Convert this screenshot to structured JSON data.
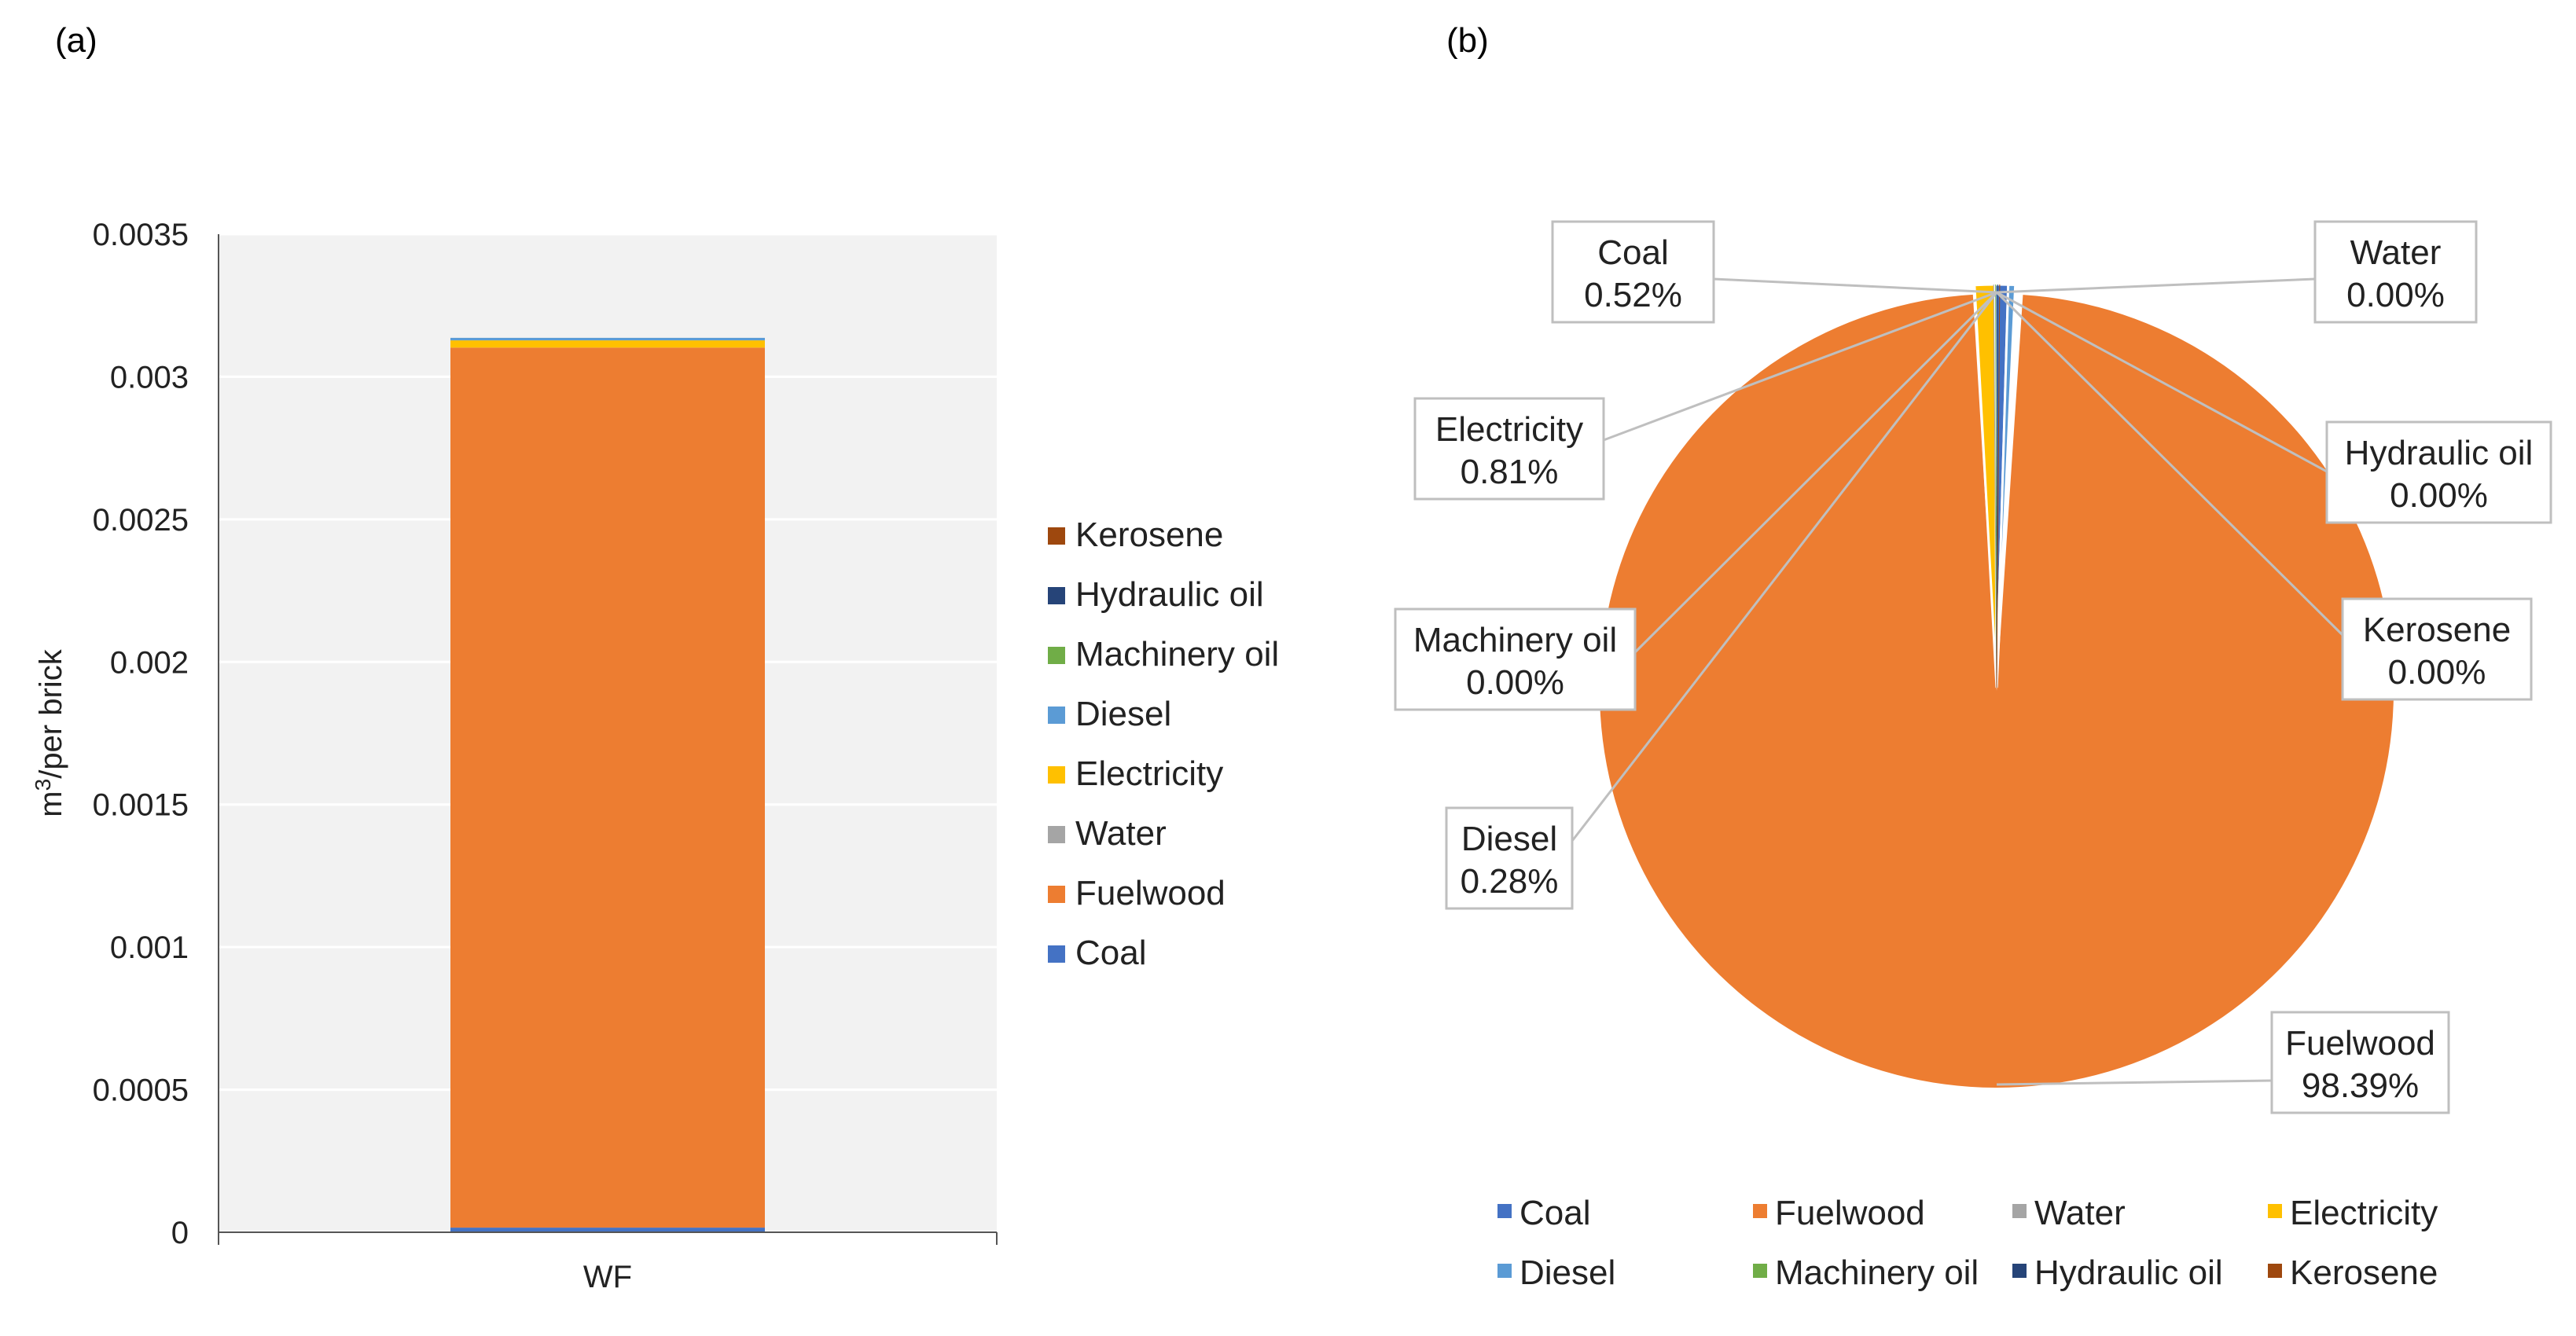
{
  "panels": {
    "a": "(a)",
    "b": "(b)"
  },
  "colors": {
    "Coal": "#4472C4",
    "Fuelwood": "#ED7D31",
    "Water": "#A5A5A5",
    "Electricity": "#FFC000",
    "Diesel": "#5B9BD5",
    "Machinery oil": "#70AD47",
    "Hydraulic oil": "#264478",
    "Kerosene": "#9E480E"
  },
  "chart_data": [
    {
      "type": "bar",
      "stacked": true,
      "panel": "(a)",
      "categories": [
        "WF"
      ],
      "ylabel": "m³/per brick",
      "ylabel_base": "m",
      "ylabel_sup": "3",
      "ylabel_rest": "/per brick",
      "ylim": [
        0,
        0.0035
      ],
      "yticks": [
        "0",
        "0.0005",
        "0.001",
        "0.0015",
        "0.002",
        "0.0025",
        "0.003",
        "0.0035"
      ],
      "series": [
        {
          "name": "Coal",
          "values": [
            1.63e-05
          ]
        },
        {
          "name": "Fuelwood",
          "values": [
            0.003086
          ]
        },
        {
          "name": "Water",
          "values": [
            0.0
          ]
        },
        {
          "name": "Electricity",
          "values": [
            2.54e-05
          ]
        },
        {
          "name": "Diesel",
          "values": [
            8.8e-06
          ]
        },
        {
          "name": "Machinery oil",
          "values": [
            0.0
          ]
        },
        {
          "name": "Hydraulic oil",
          "values": [
            0.0
          ]
        },
        {
          "name": "Kerosene",
          "values": [
            0.0
          ]
        }
      ],
      "legend_order": [
        "Kerosene",
        "Hydraulic oil",
        "Machinery oil",
        "Diesel",
        "Electricity",
        "Water",
        "Fuelwood",
        "Coal"
      ],
      "legend_position": "right"
    },
    {
      "type": "pie",
      "panel": "(b)",
      "slices": [
        {
          "name": "Coal",
          "value": 0.52,
          "label": "0.52%"
        },
        {
          "name": "Fuelwood",
          "value": 98.39,
          "label": "98.39%"
        },
        {
          "name": "Water",
          "value": 0.0,
          "label": "0.00%"
        },
        {
          "name": "Electricity",
          "value": 0.81,
          "label": "0.81%"
        },
        {
          "name": "Diesel",
          "value": 0.28,
          "label": "0.28%"
        },
        {
          "name": "Machinery oil",
          "value": 0.0,
          "label": "0.00%"
        },
        {
          "name": "Hydraulic oil",
          "value": 0.0,
          "label": "0.00%"
        },
        {
          "name": "Kerosene",
          "value": 0.0,
          "label": "0.00%"
        }
      ],
      "legend_order": [
        "Coal",
        "Fuelwood",
        "Water",
        "Electricity",
        "Diesel",
        "Machinery oil",
        "Hydraulic oil",
        "Kerosene"
      ],
      "legend_position": "bottom"
    }
  ]
}
